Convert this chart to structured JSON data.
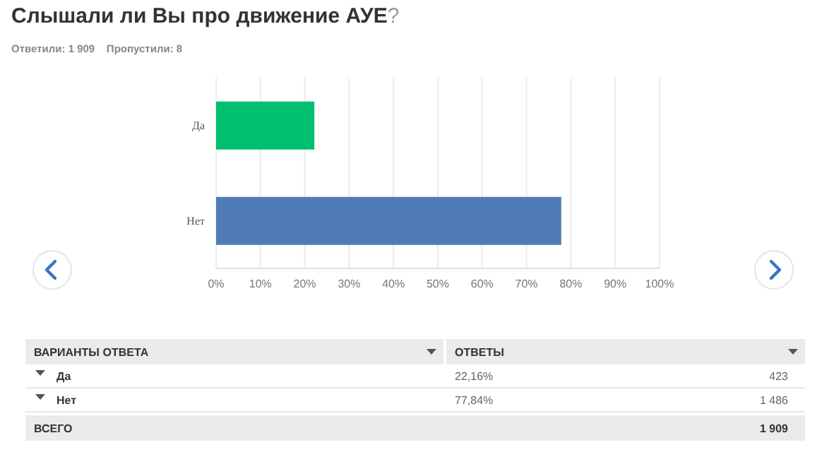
{
  "chart_data": {
    "type": "bar",
    "orientation": "horizontal",
    "title": "Слышали ли Вы про движение АУЕ?",
    "subtitle": "Ответили: 1 909    Пропустили: 8",
    "categories": [
      "Да",
      "Нет"
    ],
    "values": [
      22.16,
      77.84
    ],
    "colors": [
      "#00bf6f",
      "#507cb6"
    ],
    "xlim": [
      0,
      100
    ],
    "xticks": [
      {
        "value": 0,
        "label": "0%"
      },
      {
        "value": 10,
        "label": "10%"
      },
      {
        "value": 20,
        "label": "20%"
      },
      {
        "value": 30,
        "label": "30%"
      },
      {
        "value": 40,
        "label": "40%"
      },
      {
        "value": 50,
        "label": "50%"
      },
      {
        "value": 60,
        "label": "60%"
      },
      {
        "value": 70,
        "label": "70%"
      },
      {
        "value": 80,
        "label": "80%"
      },
      {
        "value": 90,
        "label": "90%"
      },
      {
        "value": 100,
        "label": "100%"
      }
    ],
    "grid": "x",
    "annotations": [
      "ВАРИАНТЫ ОТВЕТА",
      "ОТВЕТЫ",
      "22,16%",
      "77,84%",
      "423",
      "1 486",
      "ВСЕГО",
      "1 909"
    ]
  }
}
